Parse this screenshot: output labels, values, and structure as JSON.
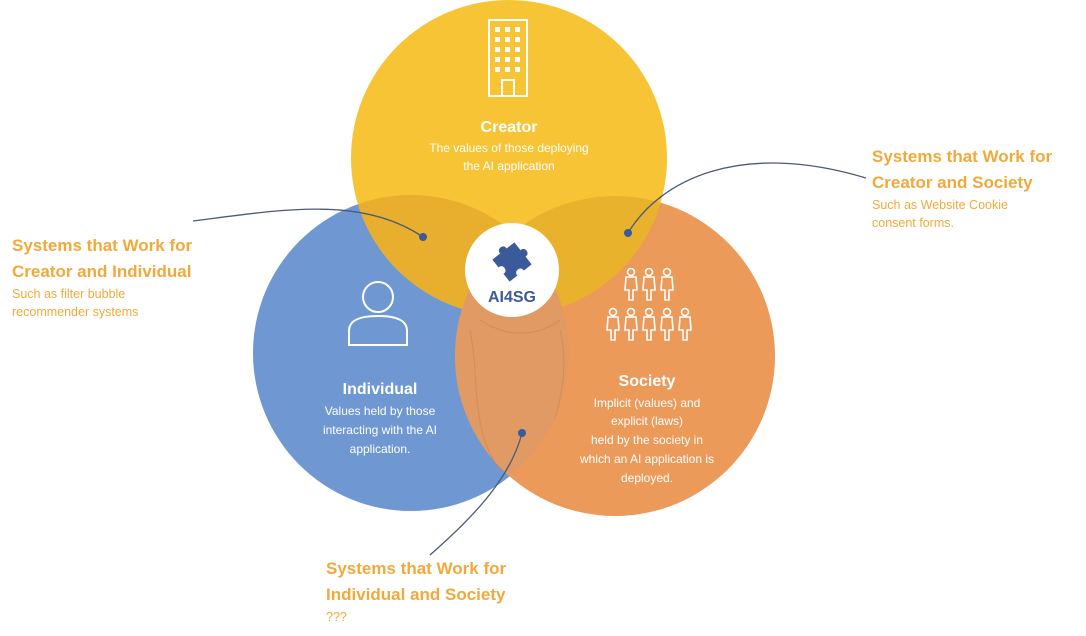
{
  "diagram": {
    "colors": {
      "creator": "#f7c436",
      "individual": "#6f98d2",
      "society": "#eb9a5a",
      "creator_individual_overlap": "#e8ae2e",
      "creator_society_overlap": "#e9b22c",
      "individual_society_overlap": "#e19a64",
      "callout_text": "#f2a93b",
      "connector": "#4a5a7a",
      "logo_blue": "#3b5a9a"
    },
    "center": {
      "logo_text": "AI4SG",
      "icon": "puzzle-piece-icon"
    },
    "creator": {
      "title": "Creator",
      "desc_line1": "The values of those deploying",
      "desc_line2": "the AI application",
      "icon": "building-icon"
    },
    "individual": {
      "title": "Individual",
      "desc_line1": "Values held by those",
      "desc_line2": "interacting with the AI",
      "desc_line3": "application.",
      "icon": "person-icon"
    },
    "society": {
      "title": "Society",
      "desc_line1": "Implicit (values) and",
      "desc_line2": "explicit (laws)",
      "desc_line3": "held by the society in",
      "desc_line4": "which an AI application is",
      "desc_line5": "deployed.",
      "icon": "people-group-icon"
    },
    "callouts": {
      "creator_individual": {
        "title_line1": "Systems that Work for",
        "title_line2": "Creator and Individual",
        "sub_line1": "Such as filter bubble",
        "sub_line2": "recommender systems"
      },
      "creator_society": {
        "title_line1": "Systems that Work for",
        "title_line2": "Creator and Society",
        "sub_line1": "Such as Website Cookie",
        "sub_line2": "consent forms."
      },
      "individual_society": {
        "title_line1": "Systems that Work for",
        "title_line2": "Individual and Society",
        "sub_line1": "???"
      }
    }
  }
}
